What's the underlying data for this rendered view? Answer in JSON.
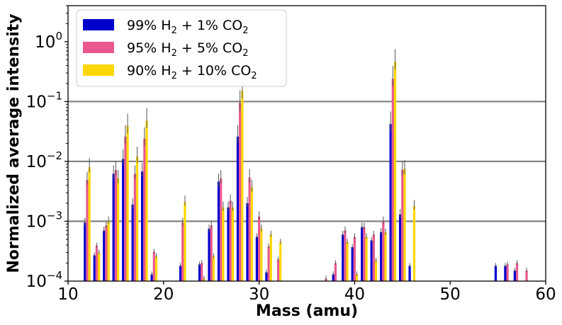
{
  "chart_data": {
    "type": "bar",
    "xlabel": "Mass (amu)",
    "ylabel": "Normalized average intensity",
    "xlim": [
      10,
      60
    ],
    "ylim": [
      0.0001,
      4
    ],
    "yscale": "log",
    "x_ticks": [
      10,
      20,
      30,
      40,
      50,
      60
    ],
    "y_ticks": [
      {
        "value": 0.0001,
        "base": "10",
        "exp": "−4"
      },
      {
        "value": 0.001,
        "base": "10",
        "exp": "−3"
      },
      {
        "value": 0.01,
        "base": "10",
        "exp": "−2"
      },
      {
        "value": 0.1,
        "base": "10",
        "exp": "−1"
      },
      {
        "value": 1,
        "base": "10",
        "exp": "0"
      }
    ],
    "hlines": [
      0.001,
      0.01,
      0.1
    ],
    "legend_position": "top-left",
    "series": [
      {
        "name": "99% H2 + 1% CO2",
        "legend": {
          "a": "99% H",
          "b": "2",
          "c": " + 1% CO",
          "d": "2"
        },
        "color": "#0000cc",
        "data": [
          [
            12,
            0.00095
          ],
          [
            13,
            0.00027
          ],
          [
            14,
            0.0007
          ],
          [
            15,
            0.0062
          ],
          [
            16,
            0.011
          ],
          [
            17,
            0.0019
          ],
          [
            18,
            0.0068
          ],
          [
            19,
            0.00013
          ],
          [
            22,
            0.00018
          ],
          [
            24,
            0.00019
          ],
          [
            25,
            0.00075
          ],
          [
            26,
            0.0046
          ],
          [
            27,
            0.0017
          ],
          [
            28,
            0.026
          ],
          [
            29,
            0.002
          ],
          [
            30,
            0.00055
          ],
          [
            31,
            0.00014
          ],
          [
            38,
            0.00013
          ],
          [
            39,
            0.0006
          ],
          [
            40,
            0.00037
          ],
          [
            41,
            0.0008
          ],
          [
            42,
            0.00048
          ],
          [
            43,
            0.00066
          ],
          [
            44,
            0.042
          ],
          [
            45,
            0.0013
          ],
          [
            46,
            0.00018
          ],
          [
            55,
            0.00018
          ],
          [
            56,
            0.00018
          ],
          [
            57,
            0.00015
          ]
        ]
      },
      {
        "name": "95% H2 + 5% CO2",
        "legend": {
          "a": "95% H",
          "b": "2",
          "c": " + 5% CO",
          "d": "2"
        },
        "color": "#e8588e",
        "data": [
          [
            12,
            0.0049
          ],
          [
            13,
            0.00039
          ],
          [
            14,
            0.00085
          ],
          [
            15,
            0.0072
          ],
          [
            16,
            0.026
          ],
          [
            17,
            0.0062
          ],
          [
            18,
            0.024
          ],
          [
            19,
            0.00031
          ],
          [
            22,
            0.00095
          ],
          [
            24,
            0.0002
          ],
          [
            25,
            0.00085
          ],
          [
            26,
            0.0052
          ],
          [
            27,
            0.0022
          ],
          [
            28,
            0.095
          ],
          [
            29,
            0.0054
          ],
          [
            30,
            0.0012
          ],
          [
            31,
            0.00038
          ],
          [
            32,
            0.00023
          ],
          [
            37,
            0.00011
          ],
          [
            38,
            0.0002
          ],
          [
            39,
            0.0007
          ],
          [
            40,
            0.00055
          ],
          [
            41,
            0.0008
          ],
          [
            42,
            0.0006
          ],
          [
            43,
            0.001
          ],
          [
            44,
            0.24
          ],
          [
            45,
            0.0072
          ],
          [
            56,
            0.00019
          ],
          [
            57,
            0.0002
          ],
          [
            58,
            0.00015
          ]
        ]
      },
      {
        "name": "90% H2 + 10% CO2",
        "legend": {
          "a": "90% H",
          "b": "2",
          "c": " + 10% CO",
          "d": "2"
        },
        "color": "#ffd700",
        "data": [
          [
            12,
            0.008
          ],
          [
            13,
            0.0003
          ],
          [
            14,
            0.001
          ],
          [
            15,
            0.0052
          ],
          [
            16,
            0.039
          ],
          [
            17,
            0.012
          ],
          [
            18,
            0.048
          ],
          [
            19,
            0.00026
          ],
          [
            22,
            0.0021
          ],
          [
            24,
            0.00011
          ],
          [
            25,
            0.00026
          ],
          [
            26,
            0.0017
          ],
          [
            27,
            0.0017
          ],
          [
            28,
            0.15
          ],
          [
            29,
            0.0037
          ],
          [
            30,
            0.00075
          ],
          [
            31,
            0.0006
          ],
          [
            32,
            0.00045
          ],
          [
            39,
            0.00045
          ],
          [
            40,
            0.00013
          ],
          [
            41,
            0.00055
          ],
          [
            42,
            0.00022
          ],
          [
            43,
            0.00065
          ],
          [
            44,
            0.46
          ],
          [
            45,
            0.0075
          ],
          [
            46,
            0.0018
          ]
        ]
      }
    ]
  }
}
